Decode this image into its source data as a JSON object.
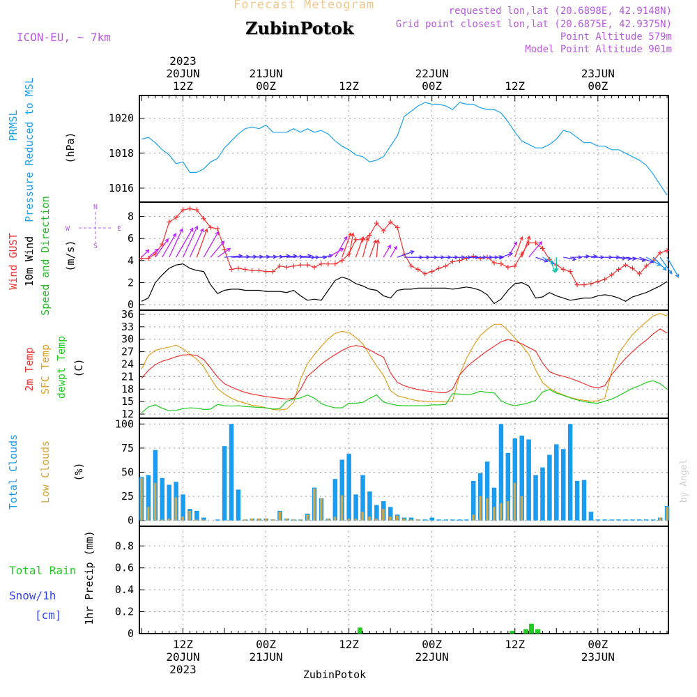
{
  "header": {
    "title": "Forecast Meteogram",
    "location": "ZubinPotok",
    "model": "ICON-EU, ~ 7km",
    "requested": "requested lon,lat (20.6898E, 42.9148N)",
    "closest": "Grid point closest lon,lat (20.6875E, 42.9375N)",
    "altitude": "Point Altitude 579m",
    "model_altitude": "Model Point Altitude 901m"
  },
  "footer": {
    "location": "ZubinPotok",
    "credit": "by Angel"
  },
  "colors": {
    "pressure": "#1aa0ee",
    "gust": "#ee3333",
    "wind": "#000000",
    "wind_dir": "#22bb22",
    "temp": "#ee3333",
    "sfc_temp": "#e0a020",
    "dewpt": "#22cc22",
    "total_clouds": "#1a9cf0",
    "low_clouds": "#d9a53a",
    "rain": "#22cc22",
    "snow": "#3344ee",
    "compass": "#b75be0"
  },
  "time_axis": {
    "top": [
      {
        "hour": 6,
        "lines": [
          "2023",
          "20JUN",
          "12Z"
        ]
      },
      {
        "hour": 18,
        "lines": [
          "21JUN",
          "00Z"
        ]
      },
      {
        "hour": 30,
        "lines": [
          "12Z"
        ]
      },
      {
        "hour": 42,
        "lines": [
          "22JUN",
          "00Z"
        ]
      },
      {
        "hour": 54,
        "lines": [
          "12Z"
        ]
      },
      {
        "hour": 66,
        "lines": [
          "23JUN",
          "00Z"
        ]
      }
    ],
    "bottom": [
      {
        "hour": 6,
        "lines": [
          "12Z",
          "20JUN",
          "2023"
        ]
      },
      {
        "hour": 18,
        "lines": [
          "00Z",
          "21JUN"
        ]
      },
      {
        "hour": 30,
        "lines": [
          "12Z"
        ]
      },
      {
        "hour": 42,
        "lines": [
          "00Z",
          "22JUN"
        ]
      },
      {
        "hour": 54,
        "lines": [
          "12Z"
        ]
      },
      {
        "hour": 66,
        "lines": [
          "00Z",
          "23JUN"
        ]
      }
    ],
    "hours_from_20jun_06z": [
      0,
      1,
      2,
      3,
      4,
      5,
      6,
      7,
      8,
      9,
      10,
      11,
      12,
      13,
      14,
      15,
      16,
      17,
      18,
      19,
      20,
      21,
      22,
      23,
      24,
      25,
      26,
      27,
      28,
      29,
      30,
      31,
      32,
      33,
      34,
      35,
      36,
      37,
      38,
      39,
      40,
      41,
      42,
      43,
      44,
      45,
      46,
      47,
      48,
      49,
      50,
      51,
      52,
      53,
      54,
      55,
      56,
      57,
      58,
      59,
      60,
      61,
      62,
      63,
      64,
      65,
      66,
      67,
      68,
      69,
      70,
      71,
      72,
      73,
      74,
      75,
      76
    ],
    "range": [
      -0.3,
      76.2
    ]
  },
  "panels": [
    {
      "id": "pressure",
      "labels": [
        {
          "text": "PRMSL",
          "color": "#1aa0ee"
        },
        {
          "text": "Pressure Reduced to MSL",
          "color": "#1aa0ee"
        },
        {
          "text": "(hPa)",
          "color": "#000000"
        }
      ],
      "ylim": [
        1015.2,
        1021.3
      ],
      "ticks": [
        1016,
        1018,
        1020
      ]
    },
    {
      "id": "wind",
      "labels": [
        {
          "text": "Wind GUST",
          "color": "#ee3333"
        },
        {
          "text": "10m Wind",
          "color": "#000000"
        },
        {
          "text": "Speed and Direction",
          "color": "#22bb22"
        },
        {
          "text": "(m/s)",
          "color": "#000000"
        }
      ],
      "ylim": [
        -0.5,
        9.3
      ],
      "ticks": [
        0,
        2,
        4,
        6,
        8
      ],
      "compass": {
        "w": "W",
        "e": "E",
        "n": "N",
        "s": "S"
      }
    },
    {
      "id": "temp",
      "labels": [
        {
          "text": "2m Temp",
          "color": "#ee3333"
        },
        {
          "text": "SFC Temp",
          "color": "#e0a020"
        },
        {
          "text": "dewpt Temp",
          "color": "#22cc22"
        },
        {
          "text": "(C)",
          "color": "#000000"
        }
      ],
      "ylim": [
        11,
        37
      ],
      "ticks": [
        12,
        15,
        18,
        21,
        24,
        27,
        30,
        33,
        36
      ]
    },
    {
      "id": "clouds",
      "labels": [
        {
          "text": "Total Clouds",
          "color": "#1a9cf0"
        },
        {
          "text": "Low Clouds",
          "color": "#d9a53a"
        },
        {
          "text": "(%)",
          "color": "#000000"
        }
      ],
      "ylim": [
        -6,
        106
      ],
      "ticks": [
        0,
        25,
        50,
        75,
        100
      ]
    },
    {
      "id": "precip",
      "labels": [
        {
          "text": "1hr Precip (mm)",
          "color": "#000000"
        }
      ],
      "legend": [
        {
          "text": "Total  Rain",
          "color": "#22cc22"
        },
        {
          "text": "Snow/1h",
          "color": "#3344ee"
        },
        {
          "text": "[cm]",
          "color": "#3344ee"
        }
      ],
      "ylim": [
        0,
        0.98
      ],
      "ticks": [
        0,
        0.2,
        0.4,
        0.6,
        0.8
      ],
      "tick_labels": [
        "0",
        "0.2",
        "0.4",
        "0.6",
        "0.8"
      ]
    }
  ],
  "chart_data": {
    "type": "line",
    "x_unit": "hours from 20JUN 06Z",
    "pressure": [
      1018.8,
      1018.9,
      1018.6,
      1018.2,
      1017.9,
      1017.4,
      1017.5,
      1016.9,
      1016.9,
      1017.1,
      1017.5,
      1017.7,
      1018.3,
      1018.7,
      1019.1,
      1019.4,
      1019.5,
      1019.4,
      1019.6,
      1019.2,
      1019.2,
      1019.2,
      1019.4,
      1019.2,
      1019.4,
      1019.2,
      1019.3,
      1019.1,
      1018.7,
      1018.4,
      1018.2,
      1017.9,
      1017.8,
      1017.5,
      1017.6,
      1017.8,
      1018.4,
      1019.0,
      1020.1,
      1020.4,
      1020.7,
      1020.9,
      1020.8,
      1020.8,
      1020.7,
      1020.5,
      1020.9,
      1020.8,
      1020.8,
      1020.6,
      1020.5,
      1020.5,
      1020.3,
      1019.8,
      1019.2,
      1018.7,
      1018.5,
      1018.3,
      1018.3,
      1018.5,
      1018.8,
      1019.3,
      1019.2,
      1018.9,
      1018.6,
      1018.6,
      1018.4,
      1018.4,
      1018.2,
      1018.2,
      1018.0,
      1017.8,
      1017.6,
      1017.3,
      1016.8,
      1016.2,
      1015.6
    ],
    "gust": [
      4.2,
      4.2,
      4.6,
      5.5,
      7.5,
      7.9,
      8.6,
      8.7,
      8.6,
      7.8,
      7.0,
      6.9,
      5.0,
      3.2,
      3.3,
      3.2,
      3.1,
      3.1,
      3.0,
      3.0,
      3.5,
      3.4,
      3.5,
      3.6,
      3.6,
      3.4,
      3.7,
      3.7,
      3.7,
      4.0,
      4.6,
      5.9,
      5.9,
      6.3,
      7.4,
      6.7,
      7.5,
      7.0,
      4.6,
      3.5,
      3.2,
      2.8,
      3.0,
      3.3,
      3.5,
      3.9,
      4.0,
      4.2,
      4.4,
      4.2,
      4.3,
      3.8,
      3.7,
      3.4,
      3.5,
      4.6,
      5.6,
      5.6,
      5.1,
      4.1,
      3.6,
      3.2,
      3.0,
      1.8,
      1.8,
      1.9,
      2.1,
      2.3,
      2.7,
      3.2,
      3.6,
      3.3,
      2.8,
      3.5,
      4.0,
      4.7,
      4.9
    ],
    "wind": [
      0.3,
      0.6,
      2.0,
      2.7,
      3.3,
      3.6,
      3.7,
      3.3,
      3.1,
      3.0,
      1.8,
      1.0,
      1.3,
      1.4,
      1.4,
      1.3,
      1.3,
      1.3,
      1.2,
      1.2,
      1.2,
      1.1,
      1.3,
      0.8,
      0.4,
      0.5,
      0.4,
      1.3,
      2.2,
      2.5,
      2.3,
      1.9,
      1.7,
      1.4,
      1.3,
      0.8,
      0.6,
      1.3,
      1.4,
      1.4,
      1.5,
      1.5,
      1.5,
      1.5,
      1.5,
      1.4,
      1.5,
      1.6,
      1.5,
      1.3,
      0.9,
      0.1,
      0.5,
      1.3,
      1.9,
      2.0,
      1.7,
      0.6,
      0.7,
      1.1,
      0.8,
      0.6,
      0.4,
      0.5,
      0.6,
      0.6,
      0.8,
      0.9,
      0.8,
      0.6,
      0.3,
      0.7,
      0.9,
      1.1,
      1.4,
      1.7,
      2.1
    ],
    "wind_dir_deg": [
      315,
      310,
      325,
      330,
      335,
      330,
      335,
      335,
      340,
      330,
      320,
      305,
      275,
      272,
      272,
      272,
      272,
      272,
      272,
      275,
      275,
      272,
      275,
      270,
      270,
      270,
      280,
      300,
      330,
      340,
      350,
      340,
      345,
      340,
      355,
      330,
      330,
      290,
      270,
      270,
      270,
      270,
      270,
      270,
      270,
      270,
      270,
      270,
      270,
      270,
      270,
      270,
      290,
      330,
      340,
      340,
      320,
      250,
      240,
      200,
      180,
      260,
      270,
      275,
      275,
      270,
      270,
      270,
      265,
      262,
      260,
      255,
      250,
      240,
      225,
      215,
      210
    ],
    "temp": [
      20.6,
      22.5,
      23.9,
      24.7,
      25.2,
      25.8,
      26.2,
      26.3,
      26.1,
      25.1,
      23.1,
      20.9,
      19.3,
      18.5,
      17.8,
      17.2,
      16.8,
      16.5,
      16.2,
      16.0,
      15.8,
      15.6,
      15.8,
      18.0,
      21.1,
      22.5,
      24.0,
      25.2,
      26.3,
      27.3,
      28.1,
      28.5,
      28.2,
      27.4,
      26.5,
      25.7,
      21.9,
      19.6,
      18.8,
      18.3,
      17.9,
      17.6,
      17.4,
      17.2,
      17.1,
      18.0,
      21.4,
      23.3,
      24.7,
      26.0,
      27.2,
      28.3,
      29.4,
      29.9,
      29.5,
      28.9,
      28.0,
      27.2,
      24.3,
      22.2,
      21.5,
      21.1,
      20.6,
      20.0,
      19.3,
      18.6,
      18.3,
      18.8,
      21.5,
      23.5,
      25.4,
      27.0,
      28.5,
      29.8,
      31.3,
      32.5,
      31.5
    ],
    "sfc_temp": [
      22.8,
      26.1,
      27.3,
      27.8,
      28.1,
      28.6,
      27.7,
      26.4,
      25.2,
      23.4,
      20.6,
      18.1,
      16.8,
      15.8,
      15.1,
      14.6,
      14.1,
      13.9,
      13.5,
      13.1,
      13.0,
      13.2,
      14.8,
      20.4,
      24.1,
      26.3,
      28.3,
      30.1,
      31.4,
      31.9,
      31.6,
      30.4,
      28.9,
      26.2,
      23.6,
      21.3,
      17.7,
      16.4,
      16.0,
      15.5,
      15.2,
      15.1,
      15.0,
      15.0,
      14.9,
      15.2,
      21.4,
      25.4,
      28.4,
      30.9,
      32.4,
      33.6,
      33.6,
      32.1,
      30.3,
      28.5,
      26.4,
      22.6,
      19.6,
      18.2,
      17.3,
      16.6,
      16.0,
      15.6,
      15.3,
      15.1,
      15.2,
      15.8,
      22.2,
      26.6,
      28.9,
      31.1,
      32.7,
      34.2,
      35.6,
      36.2,
      35.6
    ],
    "dewpt": [
      12.3,
      13.7,
      14.2,
      13.4,
      12.8,
      12.9,
      13.3,
      13.5,
      13.4,
      13.1,
      13.2,
      14.3,
      14.0,
      13.9,
      14.0,
      13.8,
      13.7,
      13.6,
      13.5,
      13.2,
      13.3,
      15.1,
      15.6,
      15.9,
      16.6,
      15.8,
      14.5,
      13.9,
      13.5,
      13.5,
      14.6,
      14.6,
      14.8,
      15.8,
      16.6,
      14.9,
      14.4,
      14.1,
      14.0,
      14.0,
      14.0,
      14.0,
      14.2,
      14.2,
      14.3,
      16.9,
      16.8,
      16.6,
      16.9,
      17.5,
      17.2,
      17.1,
      15.2,
      14.4,
      14.0,
      14.3,
      14.7,
      15.3,
      17.3,
      17.9,
      17.0,
      16.5,
      15.9,
      15.4,
      15.0,
      14.7,
      14.6,
      15.1,
      15.6,
      16.4,
      17.3,
      18.2,
      18.8,
      19.6,
      20.0,
      19.3,
      18.0
    ],
    "total_clouds": [
      45,
      47,
      73,
      44,
      37,
      40,
      27,
      12,
      10,
      3,
      0,
      1,
      77,
      100,
      32,
      1,
      2,
      2,
      2,
      1,
      10,
      2,
      1,
      1,
      7,
      34,
      23,
      2,
      43,
      63,
      69,
      27,
      47,
      30,
      16,
      20,
      14,
      6,
      3,
      3,
      1,
      1,
      3,
      1,
      1,
      1,
      1,
      1,
      41,
      49,
      61,
      34,
      100,
      70,
      85,
      88,
      84,
      47,
      55,
      68,
      79,
      74,
      100,
      41,
      42,
      9,
      1,
      1,
      1,
      1,
      1,
      1,
      1,
      1,
      1,
      3,
      15
    ],
    "low_clouds": [
      44,
      14,
      39,
      1,
      2,
      24,
      4,
      10,
      1,
      1,
      0,
      0,
      0,
      0,
      0,
      1,
      2,
      2,
      2,
      1,
      9,
      2,
      1,
      1,
      6,
      33,
      23,
      2,
      4,
      26,
      2,
      2,
      9,
      4,
      2,
      12,
      4,
      5,
      2,
      1,
      1,
      0,
      0,
      0,
      0,
      0,
      0,
      0,
      6,
      25,
      23,
      14,
      18,
      20,
      39,
      25,
      0,
      0,
      0,
      0,
      0,
      0,
      0,
      0,
      0,
      0,
      0,
      0,
      0,
      0,
      0,
      0,
      0,
      0,
      0,
      3,
      14
    ],
    "rain_bars": [
      [
        31.6,
        0.055
      ],
      [
        53.6,
        0.025
      ],
      [
        55.6,
        0.04
      ],
      [
        56.4,
        0.09
      ],
      [
        57.3,
        0.04
      ]
    ]
  }
}
